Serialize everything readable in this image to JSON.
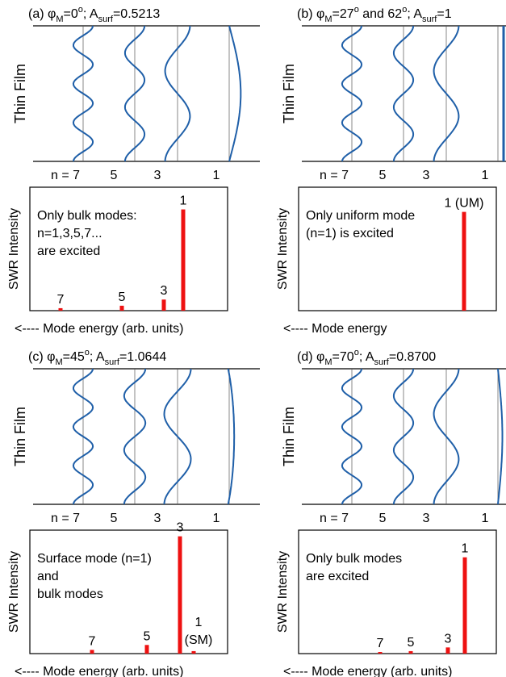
{
  "colors": {
    "wave": "#1f5fa8",
    "bar": "#ee1111",
    "frame": "#000000",
    "guide": "#555555"
  },
  "film_label": "Thin Film",
  "ylabel": "SWR Intensity",
  "panels": [
    {
      "id": "a",
      "title": {
        "prefix": "(a)  ",
        "phi": "φ",
        "phi_sub": "M",
        "phi_val": "=0",
        "phi_sup": "o",
        "mid": "; A",
        "a_sub": "surf",
        "a_val": "=0.5213"
      },
      "n_labels": [
        "n = 7",
        "5",
        "3",
        "1"
      ],
      "waves": [
        {
          "n": 7,
          "amp": 0.55,
          "type": "bulk"
        },
        {
          "n": 5,
          "amp": 0.55,
          "type": "bulk"
        },
        {
          "n": 3,
          "amp": 0.7,
          "type": "bulk"
        },
        {
          "n": 1,
          "amp": 0.65,
          "type": "bulk"
        }
      ],
      "annotation": [
        "Only bulk modes:",
        "n=1,3,5,7...",
        "are excited"
      ],
      "bars": [
        {
          "mode": 7,
          "label": "7",
          "value": 0.02
        },
        {
          "mode": 5,
          "label": "5",
          "value": 0.04
        },
        {
          "mode": 3,
          "label": "3",
          "value": 0.09
        },
        {
          "mode": 1,
          "label": "1",
          "value": 0.82
        }
      ],
      "xlabel": "<----  Mode energy (arb. units)"
    },
    {
      "id": "b",
      "title": {
        "prefix": "(b)  ",
        "phi": "φ",
        "phi_sub": "M",
        "phi_val": "=27",
        "phi_sup": "o",
        "mid": " and 62",
        "mid_sup": "o",
        "mid2": "; A",
        "a_sub": "surf",
        "a_val": "=1"
      },
      "n_labels": [
        "n = 7",
        "5",
        "3",
        "1"
      ],
      "waves": [
        {
          "n": 7,
          "amp": 0.55,
          "type": "bulk"
        },
        {
          "n": 5,
          "amp": 0.55,
          "type": "bulk"
        },
        {
          "n": 3,
          "amp": 0.7,
          "type": "bulk"
        },
        {
          "n": 1,
          "amp": 0.0,
          "type": "uniform"
        }
      ],
      "annotation": [
        "Only uniform mode",
        "(n=1) is excited"
      ],
      "bars": [
        {
          "mode": 1,
          "label": "1 (UM)",
          "value": 0.8
        }
      ],
      "xlabel": "<----  Mode energy"
    },
    {
      "id": "c",
      "title": {
        "prefix": "(c)  ",
        "phi": "φ",
        "phi_sub": "M",
        "phi_val": "=45",
        "phi_sup": "o",
        "mid": "; A",
        "a_sub": "surf",
        "a_val": "=1.0644"
      },
      "n_labels": [
        "n = 7",
        "5",
        "3",
        "1"
      ],
      "waves": [
        {
          "n": 7,
          "amp": 0.55,
          "type": "bulk"
        },
        {
          "n": 5,
          "amp": 0.6,
          "type": "bulk"
        },
        {
          "n": 3,
          "amp": 0.75,
          "type": "bulk"
        },
        {
          "n": 1,
          "amp": 0.7,
          "type": "surface"
        }
      ],
      "annotation": [
        "Surface mode (n=1)",
        "and",
        "bulk modes"
      ],
      "bars": [
        {
          "mode": 7,
          "label": "7",
          "value": 0.03
        },
        {
          "mode": 5,
          "label": "5",
          "value": 0.07
        },
        {
          "mode": 3,
          "label": "3",
          "value": 0.95
        },
        {
          "mode": 1,
          "label": "1",
          "label2": "(SM)",
          "value": 0.02
        }
      ],
      "xlabel": "<----  Mode energy (arb. units)"
    },
    {
      "id": "d",
      "title": {
        "prefix": "(d)  ",
        "phi": "φ",
        "phi_sub": "M",
        "phi_val": "=70",
        "phi_sup": "o",
        "mid": "; A",
        "a_sub": "surf",
        "a_val": "=0.8700"
      },
      "n_labels": [
        "n = 7",
        "5",
        "3",
        "1"
      ],
      "waves": [
        {
          "n": 7,
          "amp": 0.55,
          "type": "bulk"
        },
        {
          "n": 5,
          "amp": 0.55,
          "type": "bulk"
        },
        {
          "n": 3,
          "amp": 0.7,
          "type": "bulk"
        },
        {
          "n": 1,
          "amp": 0.25,
          "type": "bulk"
        }
      ],
      "annotation": [
        "Only bulk modes",
        "are excited"
      ],
      "bars": [
        {
          "mode": 7,
          "label": "7",
          "value": 0.0
        },
        {
          "mode": 5,
          "label": "5",
          "value": 0.02
        },
        {
          "mode": 3,
          "label": "3",
          "value": 0.05
        },
        {
          "mode": 1,
          "label": "1",
          "value": 0.78
        }
      ],
      "xlabel": "<----  Mode energy (arb. units)"
    }
  ]
}
